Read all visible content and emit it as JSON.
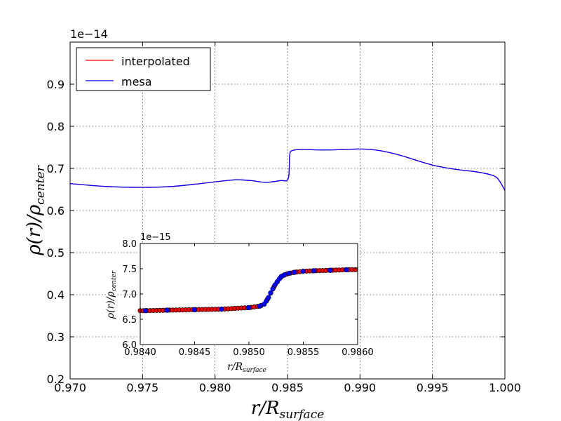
{
  "chart_data": [
    {
      "type": "line",
      "panel": "main",
      "ylabel": "ρ(r)/ρ_center",
      "ylabel_parts": {
        "main": "ρ(r)/ρ",
        "sub": "center"
      },
      "xlabel": "r/R_surface",
      "xlabel_parts": {
        "main": "r/R",
        "sub": "surface"
      },
      "offset_text": "1e−14",
      "xlim": [
        0.97,
        1.0
      ],
      "ylim": [
        0.2,
        1.0
      ],
      "xticks": [
        0.97,
        0.975,
        0.98,
        0.985,
        0.99,
        0.995,
        1.0
      ],
      "xtick_labels": [
        "0.970",
        "0.975",
        "0.980",
        "0.985",
        "0.990",
        "0.995",
        "1.000"
      ],
      "yticks": [
        0.2,
        0.3,
        0.4,
        0.5,
        0.6,
        0.7,
        0.8,
        0.9
      ],
      "ytick_labels": [
        "0.2",
        "0.3",
        "0.4",
        "0.5",
        "0.6",
        "0.7",
        "0.8",
        "0.9"
      ],
      "grid": true,
      "legend": {
        "position": "top-left",
        "entries": [
          {
            "label": "interpolated",
            "color": "#ff0000"
          },
          {
            "label": "mesa",
            "color": "#0000ff"
          }
        ]
      },
      "series": [
        {
          "name": "interpolated",
          "color": "#ff0000",
          "x": [
            0.97,
            0.9725,
            0.975,
            0.977,
            0.979,
            0.9805,
            0.9815,
            0.9825,
            0.9835,
            0.9845,
            0.98505,
            0.98515,
            0.9853,
            0.986,
            0.987,
            0.988,
            0.989,
            0.99,
            0.991,
            0.992,
            0.993,
            0.994,
            0.995,
            0.996,
            0.997,
            0.998,
            0.999,
            0.9995,
            1.0
          ],
          "y": [
            0.664,
            0.657,
            0.655,
            0.657,
            0.664,
            0.67,
            0.673,
            0.671,
            0.667,
            0.671,
            0.676,
            0.73,
            0.742,
            0.745,
            0.744,
            0.744,
            0.745,
            0.746,
            0.744,
            0.738,
            0.729,
            0.718,
            0.708,
            0.701,
            0.696,
            0.692,
            0.685,
            0.676,
            0.648
          ]
        },
        {
          "name": "mesa",
          "color": "#0000ff",
          "x": [
            0.97,
            0.9725,
            0.975,
            0.977,
            0.979,
            0.9805,
            0.9815,
            0.9825,
            0.9835,
            0.9845,
            0.98505,
            0.98515,
            0.9853,
            0.986,
            0.987,
            0.988,
            0.989,
            0.99,
            0.991,
            0.992,
            0.993,
            0.994,
            0.995,
            0.996,
            0.997,
            0.998,
            0.999,
            0.9995,
            1.0
          ],
          "y": [
            0.664,
            0.657,
            0.655,
            0.657,
            0.664,
            0.67,
            0.673,
            0.671,
            0.667,
            0.671,
            0.676,
            0.73,
            0.742,
            0.745,
            0.744,
            0.744,
            0.745,
            0.746,
            0.744,
            0.738,
            0.729,
            0.718,
            0.708,
            0.701,
            0.696,
            0.692,
            0.685,
            0.676,
            0.648
          ]
        }
      ]
    },
    {
      "type": "scatter",
      "panel": "inset",
      "ylabel": "ρ(r)/ρ_center",
      "ylabel_parts": {
        "main": "ρ(r)/ρ",
        "sub": "center"
      },
      "xlabel": "r/R_surface",
      "xlabel_parts": {
        "main": "r/R",
        "sub": "surface"
      },
      "offset_text": "1e−15",
      "xlim": [
        0.984,
        0.986
      ],
      "ylim": [
        6.0,
        8.0
      ],
      "xticks": [
        0.984,
        0.9845,
        0.985,
        0.9855,
        0.986
      ],
      "xtick_labels": [
        "0.9840",
        "0.9845",
        "0.9850",
        "0.9855",
        "0.9860"
      ],
      "yticks": [
        6.0,
        6.5,
        7.0,
        7.5,
        8.0
      ],
      "ytick_labels": [
        "6.0",
        "6.5",
        "7.0",
        "7.5",
        "8.0"
      ],
      "grid": false,
      "series": [
        {
          "name": "interpolated",
          "color": "#ff0000",
          "marker": "o",
          "x_range": [
            0.984,
            0.986
          ],
          "x_step": 3e-05
        },
        {
          "name": "mesa",
          "color": "#0000ff",
          "marker": "o",
          "x": [
            0.98405,
            0.98425,
            0.9845,
            0.98475,
            0.985,
            0.9851,
            0.98514,
            0.98516,
            0.98518,
            0.9852,
            0.98522,
            0.98524,
            0.98526,
            0.98528,
            0.9853,
            0.98533,
            0.98537,
            0.98542,
            0.9855,
            0.9856,
            0.98575,
            0.9859
          ],
          "y": [
            6.67,
            6.68,
            6.69,
            6.7,
            6.73,
            6.76,
            6.8,
            6.86,
            6.93,
            7.02,
            7.1,
            7.18,
            7.24,
            7.3,
            7.35,
            7.38,
            7.41,
            7.43,
            7.45,
            7.46,
            7.47,
            7.48
          ]
        }
      ]
    }
  ]
}
